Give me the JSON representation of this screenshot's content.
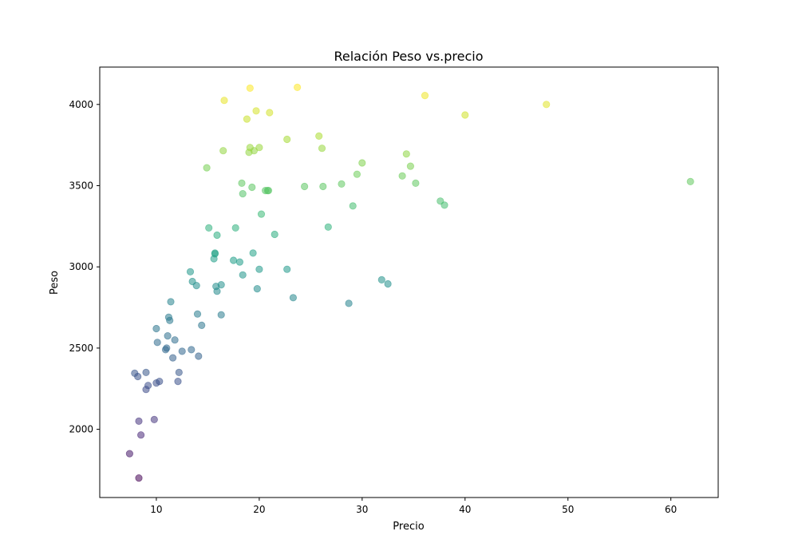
{
  "chart_data": {
    "type": "scatter",
    "title": "Relación Peso vs.precio",
    "xlabel": "Precio",
    "ylabel": "Peso",
    "xlim": [
      4.5,
      64.6
    ],
    "ylim": [
      1580,
      4230
    ],
    "xticks": [
      10,
      20,
      30,
      40,
      50,
      60
    ],
    "yticks": [
      2000,
      2500,
      3000,
      3500,
      4000
    ],
    "grid": false,
    "colormap": "viridis",
    "color_by": "y",
    "marker_alpha": 0.55,
    "x": [
      7.4,
      8.3,
      7.9,
      8.2,
      8.3,
      8.5,
      9.0,
      9.0,
      9.2,
      9.8,
      10.0,
      10.3,
      10.0,
      10.1,
      10.9,
      11.1,
      11.0,
      11.2,
      11.3,
      11.4,
      11.6,
      11.8,
      12.1,
      12.2,
      12.5,
      13.3,
      13.4,
      13.5,
      13.9,
      14.0,
      14.1,
      14.4,
      14.9,
      15.1,
      15.6,
      15.7,
      15.7,
      15.8,
      15.9,
      15.9,
      16.3,
      16.3,
      16.5,
      16.6,
      17.5,
      17.7,
      18.1,
      18.3,
      18.4,
      18.4,
      18.8,
      19.0,
      19.1,
      19.1,
      19.3,
      19.4,
      19.5,
      19.7,
      19.8,
      20.0,
      20.0,
      20.2,
      20.6,
      20.8,
      20.9,
      21.0,
      21.5,
      22.7,
      22.7,
      23.3,
      23.7,
      24.4,
      25.8,
      26.1,
      26.2,
      26.7,
      28.0,
      28.7,
      29.1,
      29.5,
      30.0,
      31.9,
      32.5,
      33.9,
      34.3,
      34.7,
      35.2,
      36.1,
      37.6,
      38.0,
      40.0,
      47.9,
      61.9
    ],
    "y": [
      1850,
      1700,
      2345,
      2325,
      2050,
      1965,
      2350,
      2245,
      2270,
      2060,
      2285,
      2295,
      2620,
      2535,
      2490,
      2575,
      2500,
      2690,
      2670,
      2785,
      2440,
      2550,
      2295,
      2350,
      2480,
      2970,
      2490,
      2910,
      2885,
      2710,
      2450,
      2640,
      3610,
      3240,
      3050,
      3085,
      3080,
      2880,
      2850,
      3195,
      2705,
      2890,
      3715,
      4025,
      3040,
      3240,
      3030,
      3515,
      3450,
      2950,
      3910,
      3705,
      4100,
      3735,
      3490,
      3085,
      3715,
      3960,
      2865,
      3735,
      2985,
      3325,
      3470,
      3470,
      3470,
      3950,
      3200,
      2985,
      3785,
      2810,
      4105,
      3495,
      3805,
      3730,
      3495,
      3245,
      3510,
      2775,
      3375,
      3570,
      3640,
      2920,
      2895,
      3560,
      3695,
      3620,
      3515,
      4055,
      3405,
      3380,
      3935,
      4000,
      3525
    ]
  }
}
